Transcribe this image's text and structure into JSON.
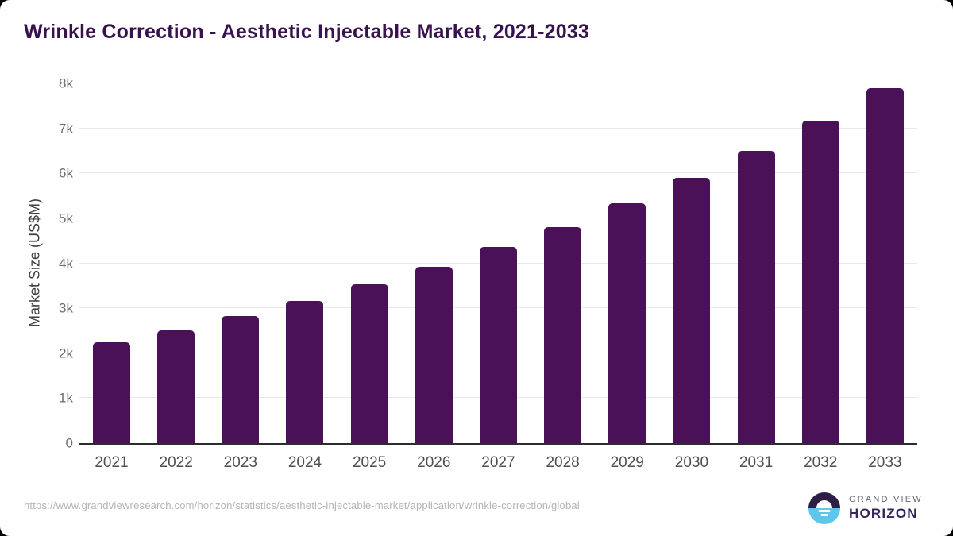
{
  "page": {
    "title": "Wrinkle Correction - Aesthetic Injectable Market, 2021-2033",
    "source_url": "https://www.grandviewresearch.com/horizon/statistics/aesthetic-injectable-market/application/wrinkle-correction/global",
    "brand": {
      "line1": "GRAND VIEW",
      "line2": "HORIZON"
    }
  },
  "chart_data": {
    "type": "bar",
    "title": "Wrinkle Correction - Aesthetic Injectable Market, 2021-2033",
    "categories": [
      "2021",
      "2022",
      "2023",
      "2024",
      "2025",
      "2026",
      "2027",
      "2028",
      "2029",
      "2030",
      "2031",
      "2032",
      "2033"
    ],
    "values": [
      2240,
      2500,
      2820,
      3160,
      3530,
      3920,
      4360,
      4810,
      5330,
      5900,
      6500,
      7170,
      7890
    ],
    "xlabel": "",
    "ylabel": "Market Size (US$M)",
    "ylim": [
      0,
      8000
    ],
    "yticks": [
      0,
      1000,
      2000,
      3000,
      4000,
      5000,
      6000,
      7000,
      8000
    ],
    "ytick_labels": [
      "0",
      "1k",
      "2k",
      "3k",
      "4k",
      "5k",
      "6k",
      "7k",
      "8k"
    ],
    "grid": "horizontal",
    "legend": false,
    "bar_color": "#4a1158",
    "title_color": "#38124e",
    "gridline_color": "#e8e8e8",
    "axis_color": "#2f2b33",
    "tick_color": "#6d6d6d"
  },
  "logo_colors": {
    "top_half": "#2e1e46",
    "bottom_half": "#5cc6eb"
  }
}
